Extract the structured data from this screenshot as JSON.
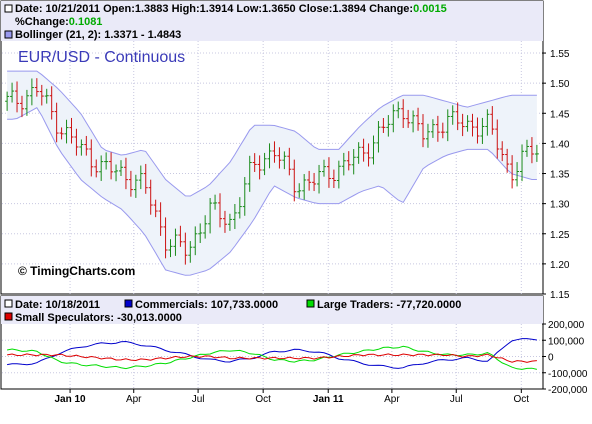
{
  "chart_data": [
    {
      "type": "ohlc",
      "title": "EUR/USD - Continuous",
      "info_line_1": {
        "date": "Date: 10/21/2011",
        "open": "Open:1.3883",
        "high": "High:1.3914",
        "low": "Low:1.3650",
        "close": "Close:1.3894",
        "change_label": "Change:",
        "change_value": "0.0015"
      },
      "info_line_2": {
        "pct_label": "%Change:",
        "pct_value": "0.1081"
      },
      "bollinger_label": "Bollinger (21, 2): 1.3371 - 1.4843",
      "watermark": "© TimingCharts.com",
      "x_tick_labels": [
        "Jan 10",
        "Apr",
        "Jul",
        "Oct",
        "Jan 11",
        "Apr",
        "Jul",
        "Oct"
      ],
      "y_tick_labels": [
        "1.55",
        "1.50",
        "1.45",
        "1.40",
        "1.35",
        "1.30",
        "1.25",
        "1.20",
        "1.15"
      ],
      "ylim": [
        1.15,
        1.57
      ],
      "x_months": [
        "2009-10",
        "2009-11",
        "2009-12",
        "2010-01",
        "2010-02",
        "2010-03",
        "2010-04",
        "2010-05",
        "2010-06",
        "2010-07",
        "2010-08",
        "2010-09",
        "2010-10",
        "2010-11",
        "2010-12",
        "2011-01",
        "2011-02",
        "2011-03",
        "2011-04",
        "2011-05",
        "2011-06",
        "2011-07",
        "2011-08",
        "2011-09",
        "2011-10"
      ],
      "close": [
        1.47,
        1.49,
        1.43,
        1.39,
        1.36,
        1.35,
        1.33,
        1.24,
        1.22,
        1.29,
        1.27,
        1.36,
        1.39,
        1.33,
        1.34,
        1.36,
        1.38,
        1.42,
        1.46,
        1.41,
        1.44,
        1.43,
        1.43,
        1.35,
        1.39
      ],
      "bollinger_upper": [
        1.52,
        1.52,
        1.49,
        1.45,
        1.39,
        1.38,
        1.39,
        1.34,
        1.31,
        1.33,
        1.37,
        1.43,
        1.43,
        1.42,
        1.39,
        1.39,
        1.43,
        1.46,
        1.48,
        1.48,
        1.47,
        1.46,
        1.47,
        1.48,
        1.48
      ],
      "bollinger_lower": [
        1.44,
        1.46,
        1.39,
        1.34,
        1.31,
        1.29,
        1.25,
        1.19,
        1.18,
        1.19,
        1.22,
        1.27,
        1.33,
        1.31,
        1.3,
        1.3,
        1.32,
        1.33,
        1.3,
        1.36,
        1.38,
        1.39,
        1.39,
        1.35,
        1.34
      ],
      "colors": {
        "up_bar": "#1a8a1a",
        "down_bar": "#cc1111",
        "band_line": "#9999ee",
        "band_fill": "#eef3fa",
        "title": "#3a3ab8",
        "change": "#00aa00"
      }
    },
    {
      "type": "line",
      "info_line_1": {
        "date": "Date: 10/18/2011",
        "commercials": "Commercials: 107,733.0000",
        "large_traders": "Large Traders: -77,720.0000"
      },
      "info_line_2": {
        "small_speculators": "Small Speculators: -30,013.0000"
      },
      "y_tick_labels": [
        "200,000",
        "100,000",
        "0",
        "-100,000",
        "-200,000"
      ],
      "ylim": [
        -200000,
        200000
      ],
      "x_months": [
        "2009-10",
        "2009-11",
        "2009-12",
        "2010-01",
        "2010-02",
        "2010-03",
        "2010-04",
        "2010-05",
        "2010-06",
        "2010-07",
        "2010-08",
        "2010-09",
        "2010-10",
        "2010-11",
        "2010-12",
        "2011-01",
        "2011-02",
        "2011-03",
        "2011-04",
        "2011-05",
        "2011-06",
        "2011-07",
        "2011-08",
        "2011-09",
        "2011-10"
      ],
      "series": [
        {
          "name": "Commercials",
          "color": "#0000cc",
          "values": [
            -50000,
            -40000,
            20000,
            60000,
            80000,
            90000,
            70000,
            40000,
            10000,
            -20000,
            -30000,
            -10000,
            30000,
            40000,
            30000,
            -10000,
            -40000,
            -60000,
            -70000,
            -40000,
            -20000,
            -10000,
            -30000,
            100000,
            107733
          ]
        },
        {
          "name": "Large Traders",
          "color": "#00dd00",
          "values": [
            40000,
            30000,
            -30000,
            -50000,
            -60000,
            -70000,
            -60000,
            -40000,
            -10000,
            20000,
            40000,
            20000,
            -20000,
            -30000,
            -20000,
            10000,
            30000,
            50000,
            60000,
            30000,
            10000,
            10000,
            20000,
            -70000,
            -77720
          ]
        },
        {
          "name": "Small Speculators",
          "color": "#dd0000",
          "values": [
            10000,
            10000,
            10000,
            0,
            -10000,
            -20000,
            -20000,
            -10000,
            0,
            0,
            -10000,
            -10000,
            -10000,
            -10000,
            -10000,
            0,
            10000,
            10000,
            10000,
            10000,
            10000,
            0,
            10000,
            -30000,
            -30013
          ]
        }
      ]
    }
  ]
}
